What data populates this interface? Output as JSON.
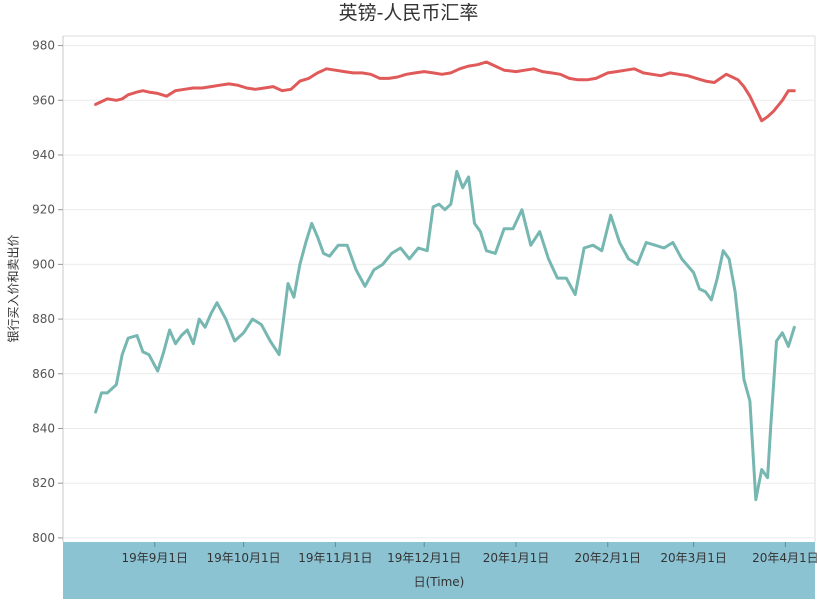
{
  "chart_data": {
    "type": "line",
    "title": "英镑-人民币汇率",
    "xlabel": "日(Time)",
    "ylabel": "银行买入价和卖出价",
    "ylim": [
      800,
      980
    ],
    "yticks": [
      800,
      820,
      840,
      860,
      880,
      900,
      920,
      940,
      960,
      980
    ],
    "xlim": [
      "2019-08-01",
      "2020-04-11"
    ],
    "xticks": [
      {
        "date": "2019-09-01",
        "label": "19年9月1日"
      },
      {
        "date": "2019-10-01",
        "label": "19年10月1日"
      },
      {
        "date": "2019-11-01",
        "label": "19年11月1日"
      },
      {
        "date": "2019-12-01",
        "label": "19年12月1日"
      },
      {
        "date": "2020-01-01",
        "label": "20年1月1日"
      },
      {
        "date": "2020-02-01",
        "label": "20年2月1日"
      },
      {
        "date": "2020-03-01",
        "label": "20年3月1日"
      },
      {
        "date": "2020-04-01",
        "label": "20年4月1日"
      }
    ],
    "grid": true,
    "colors": {
      "sell": "#e05a5a",
      "buy": "#76b7b2",
      "axis_band": "#8cc3d3",
      "grid": "#ebebeb"
    },
    "series": [
      {
        "key": "sell",
        "x": [
          "2019-08-12",
          "2019-08-14",
          "2019-08-16",
          "2019-08-19",
          "2019-08-21",
          "2019-08-23",
          "2019-08-26",
          "2019-08-28",
          "2019-08-30",
          "2019-09-02",
          "2019-09-05",
          "2019-09-08",
          "2019-09-11",
          "2019-09-14",
          "2019-09-17",
          "2019-09-20",
          "2019-09-23",
          "2019-09-26",
          "2019-09-29",
          "2019-10-02",
          "2019-10-05",
          "2019-10-08",
          "2019-10-11",
          "2019-10-14",
          "2019-10-17",
          "2019-10-20",
          "2019-10-23",
          "2019-10-26",
          "2019-10-29",
          "2019-11-01",
          "2019-11-04",
          "2019-11-07",
          "2019-11-10",
          "2019-11-13",
          "2019-11-16",
          "2019-11-19",
          "2019-11-22",
          "2019-11-25",
          "2019-11-28",
          "2019-12-01",
          "2019-12-04",
          "2019-12-07",
          "2019-12-10",
          "2019-12-13",
          "2019-12-16",
          "2019-12-19",
          "2019-12-22",
          "2019-12-25",
          "2019-12-28",
          "2020-01-01",
          "2020-01-04",
          "2020-01-07",
          "2020-01-10",
          "2020-01-13",
          "2020-01-16",
          "2020-01-19",
          "2020-01-22",
          "2020-01-25",
          "2020-01-28",
          "2020-02-01",
          "2020-02-04",
          "2020-02-07",
          "2020-02-10",
          "2020-02-13",
          "2020-02-16",
          "2020-02-19",
          "2020-02-22",
          "2020-02-25",
          "2020-02-28",
          "2020-03-02",
          "2020-03-05",
          "2020-03-08",
          "2020-03-10",
          "2020-03-12",
          "2020-03-14",
          "2020-03-16",
          "2020-03-18",
          "2020-03-20",
          "2020-03-22",
          "2020-03-24",
          "2020-03-26",
          "2020-03-28",
          "2020-03-31",
          "2020-04-02",
          "2020-04-04"
        ],
        "y": [
          958.5,
          959.5,
          960.5,
          960,
          960.5,
          962,
          963,
          963.5,
          963,
          962.5,
          961.5,
          963.5,
          964,
          964.5,
          964.5,
          965,
          965.5,
          966,
          965.5,
          964.5,
          964,
          964.5,
          965,
          963.5,
          964,
          967,
          968,
          970,
          971.5,
          971,
          970.5,
          970,
          970,
          969.5,
          968,
          968,
          968.5,
          969.5,
          970,
          970.5,
          970,
          969.5,
          970,
          971.5,
          972.5,
          973,
          974,
          972.5,
          971,
          970.5,
          971,
          971.5,
          970.5,
          970,
          969.5,
          968,
          967.5,
          967.5,
          968,
          970,
          970.5,
          971,
          971.5,
          970,
          969.5,
          969,
          970,
          969.5,
          969,
          968,
          967,
          966.5,
          968,
          969.5,
          968.5,
          967.5,
          965,
          961.5,
          957,
          952.5,
          954,
          956,
          960,
          963.5,
          963.5
        ]
      },
      {
        "key": "buy",
        "x": [
          "2019-08-12",
          "2019-08-14",
          "2019-08-16",
          "2019-08-19",
          "2019-08-21",
          "2019-08-23",
          "2019-08-26",
          "2019-08-28",
          "2019-08-30",
          "2019-09-02",
          "2019-09-04",
          "2019-09-06",
          "2019-09-08",
          "2019-09-10",
          "2019-09-12",
          "2019-09-14",
          "2019-09-16",
          "2019-09-18",
          "2019-09-20",
          "2019-09-22",
          "2019-09-25",
          "2019-09-28",
          "2019-10-01",
          "2019-10-04",
          "2019-10-07",
          "2019-10-10",
          "2019-10-13",
          "2019-10-16",
          "2019-10-18",
          "2019-10-20",
          "2019-10-22",
          "2019-10-24",
          "2019-10-26",
          "2019-10-28",
          "2019-10-30",
          "2019-11-02",
          "2019-11-05",
          "2019-11-08",
          "2019-11-11",
          "2019-11-14",
          "2019-11-17",
          "2019-11-20",
          "2019-11-23",
          "2019-11-26",
          "2019-11-29",
          "2019-12-02",
          "2019-12-04",
          "2019-12-06",
          "2019-12-08",
          "2019-12-10",
          "2019-12-12",
          "2019-12-14",
          "2019-12-16",
          "2019-12-18",
          "2019-12-20",
          "2019-12-22",
          "2019-12-25",
          "2019-12-28",
          "2019-12-31",
          "2020-01-03",
          "2020-01-06",
          "2020-01-09",
          "2020-01-12",
          "2020-01-15",
          "2020-01-18",
          "2020-01-21",
          "2020-01-24",
          "2020-01-27",
          "2020-01-30",
          "2020-02-02",
          "2020-02-05",
          "2020-02-08",
          "2020-02-11",
          "2020-02-14",
          "2020-02-17",
          "2020-02-20",
          "2020-02-23",
          "2020-02-26",
          "2020-03-01",
          "2020-03-03",
          "2020-03-05",
          "2020-03-07",
          "2020-03-09",
          "2020-03-11",
          "2020-03-13",
          "2020-03-15",
          "2020-03-17",
          "2020-03-18",
          "2020-03-20",
          "2020-03-22",
          "2020-03-24",
          "2020-03-26",
          "2020-03-27",
          "2020-03-29",
          "2020-03-31",
          "2020-04-02",
          "2020-04-04"
        ],
        "y": [
          846,
          853,
          853,
          856,
          867,
          873,
          874,
          868,
          867,
          861,
          868,
          876,
          871,
          874,
          876,
          871,
          880,
          877,
          882,
          886,
          880,
          872,
          875,
          880,
          878,
          872,
          867,
          893,
          888,
          900,
          908,
          915,
          910,
          904,
          903,
          907,
          907,
          898,
          892,
          898,
          900,
          904,
          906,
          902,
          906,
          905,
          921,
          922,
          920,
          922,
          934,
          928,
          932,
          915,
          912,
          905,
          904,
          913,
          913,
          920,
          907,
          912,
          902,
          895,
          895,
          889,
          906,
          907,
          905,
          918,
          908,
          902,
          900,
          908,
          907,
          906,
          908,
          902,
          897,
          891,
          890,
          887,
          895,
          905,
          902,
          890,
          870,
          858,
          850,
          814,
          825,
          822,
          840,
          872,
          875,
          870,
          877
        ]
      }
    ]
  }
}
